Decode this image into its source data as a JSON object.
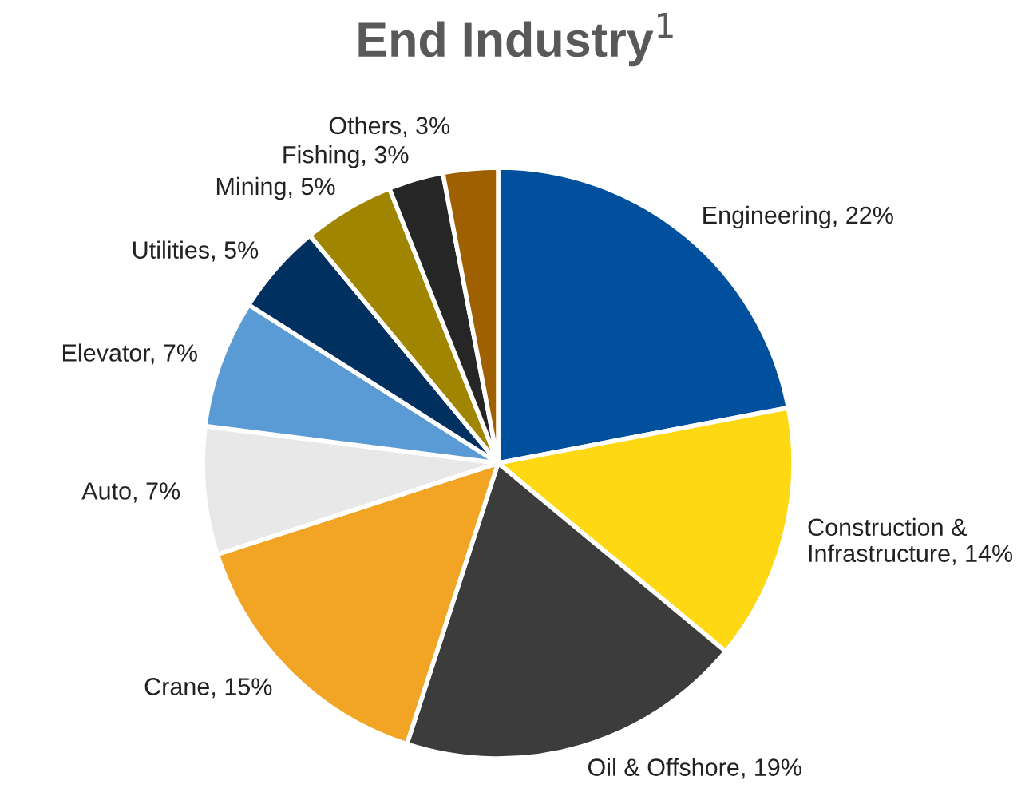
{
  "chart_data": {
    "type": "pie",
    "title": "End Industry$^{1}$",
    "categories": [
      "Engineering",
      "Construction & Infrastructure",
      "Oil & Offshore",
      "Crane",
      "Auto",
      "Elevator",
      "Utilities",
      "Mining",
      "Fishing",
      "Others"
    ],
    "values": [
      22,
      14,
      19,
      15,
      7,
      7,
      5,
      5,
      3,
      3
    ],
    "value_labels": [
      "22%",
      "14%",
      "19%",
      "15%",
      "7%",
      "7%",
      "5%",
      "5%",
      "3%",
      "3%"
    ],
    "colors": [
      "#00509e",
      "#fdd813",
      "#3c3c3c",
      "#f2a525",
      "#e8e8e8",
      "#5b9bd5",
      "#00305f",
      "#a08600",
      "#262626",
      "#9e6000"
    ],
    "legend": false
  }
}
